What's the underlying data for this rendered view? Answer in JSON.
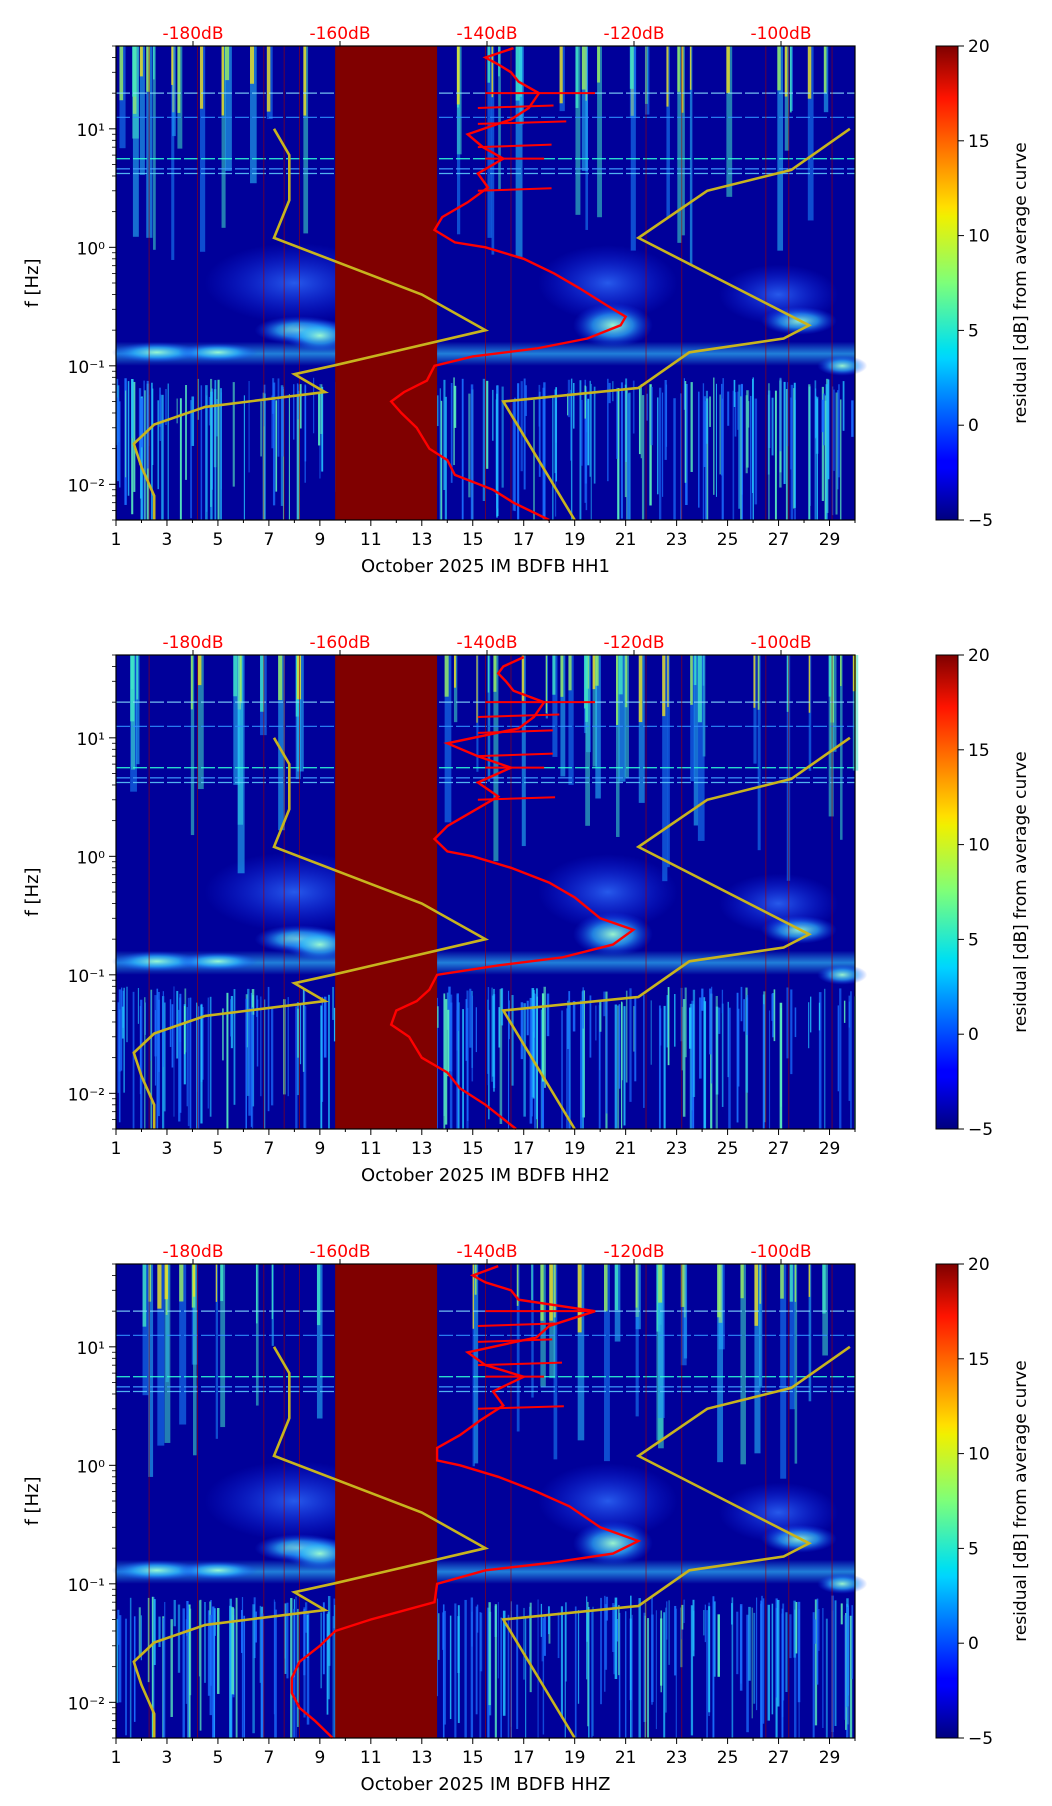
{
  "chart_data": [
    {
      "type": "heatmap",
      "channel": "HH1",
      "xlabel": "October 2025 IM BDFB  HH1",
      "ylabel": "f [Hz]",
      "x_ticks": [
        "1",
        "3",
        "5",
        "7",
        "9",
        "11",
        "13",
        "15",
        "17",
        "19",
        "21",
        "23",
        "25",
        "27",
        "29"
      ],
      "y_ticks": [
        "10⁻²",
        "10⁻¹",
        "10⁰",
        "10¹"
      ],
      "top_ticks": [
        "-180dB",
        "-160dB",
        "-140dB",
        "-120dB",
        "-100dB"
      ],
      "colorbar": {
        "label": "residual [dB] from average curve",
        "ticks": [
          "20",
          "15",
          "10",
          "5",
          "0",
          "−5"
        ],
        "range": [
          -5,
          20
        ]
      },
      "gap_days": [
        9.6,
        13.6
      ],
      "red_curve": [
        [
          18,
          0.005
        ],
        [
          16.6,
          0.007
        ],
        [
          15.8,
          0.009
        ],
        [
          14.3,
          0.012
        ],
        [
          14,
          0.016
        ],
        [
          13.3,
          0.02
        ],
        [
          12.8,
          0.03
        ],
        [
          12.2,
          0.04
        ],
        [
          11.8,
          0.05
        ],
        [
          12.3,
          0.06
        ],
        [
          13.2,
          0.075
        ],
        [
          13.5,
          0.1
        ],
        [
          15,
          0.12
        ],
        [
          17.5,
          0.14
        ],
        [
          19.5,
          0.17
        ],
        [
          20.8,
          0.22
        ],
        [
          21,
          0.26
        ],
        [
          20.3,
          0.32
        ],
        [
          19.2,
          0.45
        ],
        [
          18.2,
          0.6
        ],
        [
          17,
          0.8
        ],
        [
          15.5,
          1.0
        ],
        [
          14.3,
          1.1
        ],
        [
          13.5,
          1.4
        ],
        [
          13.8,
          1.8
        ],
        [
          14.8,
          2.4
        ],
        [
          15.6,
          3.2
        ],
        [
          15.2,
          4.2
        ],
        [
          16.2,
          5.6
        ],
        [
          15.4,
          7
        ],
        [
          14.8,
          9
        ],
        [
          16.5,
          12
        ],
        [
          17.2,
          15
        ],
        [
          17.6,
          20
        ],
        [
          16.8,
          25
        ],
        [
          16.5,
          30
        ],
        [
          16,
          35
        ],
        [
          15.5,
          40
        ],
        [
          16.6,
          48
        ]
      ],
      "yellow_curve": [
        [
          2.5,
          0.005
        ],
        [
          2.5,
          0.008
        ],
        [
          2,
          0.014
        ],
        [
          1.7,
          0.022
        ],
        [
          2.5,
          0.032
        ],
        [
          4.5,
          0.045
        ],
        [
          9.2,
          0.06
        ],
        [
          8,
          0.085
        ],
        [
          9.5,
          0.1
        ],
        [
          15.5,
          0.2
        ],
        [
          13,
          0.4
        ],
        [
          7.2,
          1.2
        ],
        [
          7.8,
          2.5
        ],
        [
          7.8,
          6
        ],
        [
          7.2,
          10
        ]
      ],
      "yellow_curve_2": [
        [
          19,
          0.005
        ],
        [
          16.2,
          0.05
        ],
        [
          21.5,
          0.065
        ],
        [
          23.5,
          0.13
        ],
        [
          27.2,
          0.17
        ],
        [
          28.2,
          0.22
        ],
        [
          21.5,
          1.2
        ],
        [
          24.2,
          3
        ],
        [
          27.5,
          4.5
        ],
        [
          29.8,
          10
        ]
      ]
    },
    {
      "type": "heatmap",
      "channel": "HH2",
      "xlabel": "October 2025 IM BDFB  HH2",
      "ylabel": "f [Hz]",
      "x_ticks": [
        "1",
        "3",
        "5",
        "7",
        "9",
        "11",
        "13",
        "15",
        "17",
        "19",
        "21",
        "23",
        "25",
        "27",
        "29"
      ],
      "y_ticks": [
        "10⁻²",
        "10⁻¹",
        "10⁰",
        "10¹"
      ],
      "top_ticks": [
        "-180dB",
        "-160dB",
        "-140dB",
        "-120dB",
        "-100dB"
      ],
      "colorbar": {
        "label": "residual [dB] from average curve",
        "ticks": [
          "20",
          "15",
          "10",
          "5",
          "0",
          "−5"
        ],
        "range": [
          -5,
          20
        ]
      },
      "gap_days": [
        9.6,
        13.6
      ],
      "red_curve": [
        [
          16.7,
          0.005
        ],
        [
          15.5,
          0.008
        ],
        [
          14.5,
          0.011
        ],
        [
          14,
          0.015
        ],
        [
          13,
          0.02
        ],
        [
          12.5,
          0.03
        ],
        [
          11.8,
          0.038
        ],
        [
          12,
          0.05
        ],
        [
          12.8,
          0.06
        ],
        [
          13.3,
          0.075
        ],
        [
          13.6,
          0.1
        ],
        [
          16,
          0.12
        ],
        [
          18.5,
          0.14
        ],
        [
          20.5,
          0.18
        ],
        [
          21.3,
          0.24
        ],
        [
          20,
          0.3
        ],
        [
          19,
          0.45
        ],
        [
          18,
          0.6
        ],
        [
          16.5,
          0.8
        ],
        [
          15,
          1.0
        ],
        [
          14,
          1.1
        ],
        [
          13.5,
          1.4
        ],
        [
          14,
          1.8
        ],
        [
          15,
          2.4
        ],
        [
          16,
          3.2
        ],
        [
          15.2,
          4.2
        ],
        [
          16.5,
          5.6
        ],
        [
          15.2,
          7
        ],
        [
          14,
          9
        ],
        [
          16.8,
          12
        ],
        [
          17.4,
          15
        ],
        [
          17.8,
          20
        ],
        [
          16.6,
          25
        ],
        [
          16.3,
          30
        ],
        [
          16,
          35
        ],
        [
          16.2,
          40
        ],
        [
          17,
          48
        ]
      ],
      "yellow_curve": [
        [
          2.5,
          0.005
        ],
        [
          2.5,
          0.008
        ],
        [
          2,
          0.014
        ],
        [
          1.7,
          0.022
        ],
        [
          2.5,
          0.032
        ],
        [
          4.5,
          0.045
        ],
        [
          9.2,
          0.06
        ],
        [
          8,
          0.085
        ],
        [
          9.5,
          0.1
        ],
        [
          15.5,
          0.2
        ],
        [
          13,
          0.4
        ],
        [
          7.2,
          1.2
        ],
        [
          7.8,
          2.5
        ],
        [
          7.8,
          6
        ],
        [
          7.2,
          10
        ]
      ],
      "yellow_curve_2": [
        [
          19,
          0.005
        ],
        [
          16.2,
          0.05
        ],
        [
          21.5,
          0.065
        ],
        [
          23.5,
          0.13
        ],
        [
          27.2,
          0.17
        ],
        [
          28.2,
          0.22
        ],
        [
          21.5,
          1.2
        ],
        [
          24.2,
          3
        ],
        [
          27.5,
          4.5
        ],
        [
          29.8,
          10
        ]
      ]
    },
    {
      "type": "heatmap",
      "channel": "HHZ",
      "xlabel": "October 2025 IM BDFB  HHZ",
      "ylabel": "f [Hz]",
      "x_ticks": [
        "1",
        "3",
        "5",
        "7",
        "9",
        "11",
        "13",
        "15",
        "17",
        "19",
        "21",
        "23",
        "25",
        "27",
        "29"
      ],
      "y_ticks": [
        "10⁻²",
        "10⁻¹",
        "10⁰",
        "10¹"
      ],
      "top_ticks": [
        "-180dB",
        "-160dB",
        "-140dB",
        "-120dB",
        "-100dB"
      ],
      "colorbar": {
        "label": "residual [dB] from average curve",
        "ticks": [
          "20",
          "15",
          "10",
          "5",
          "0",
          "−5"
        ],
        "range": [
          -5,
          20
        ]
      },
      "gap_days": [
        9.6,
        13.6
      ],
      "red_curve": [
        [
          9.5,
          0.005
        ],
        [
          8.8,
          0.007
        ],
        [
          8.2,
          0.009
        ],
        [
          7.9,
          0.012
        ],
        [
          7.9,
          0.016
        ],
        [
          8.2,
          0.022
        ],
        [
          9,
          0.03
        ],
        [
          9.6,
          0.04
        ],
        [
          11,
          0.05
        ],
        [
          13.5,
          0.07
        ],
        [
          13.6,
          0.1
        ],
        [
          15.5,
          0.13
        ],
        [
          18,
          0.15
        ],
        [
          20.5,
          0.18
        ],
        [
          21.5,
          0.23
        ],
        [
          20,
          0.3
        ],
        [
          18.8,
          0.45
        ],
        [
          17.5,
          0.6
        ],
        [
          16,
          0.8
        ],
        [
          14.5,
          1.0
        ],
        [
          13.6,
          1.1
        ],
        [
          13.6,
          1.4
        ],
        [
          14.5,
          1.8
        ],
        [
          15.3,
          2.4
        ],
        [
          16.2,
          3.2
        ],
        [
          15.8,
          4.2
        ],
        [
          17,
          5.6
        ],
        [
          15.5,
          7
        ],
        [
          14.8,
          9
        ],
        [
          17.5,
          12
        ],
        [
          18,
          15
        ],
        [
          19.8,
          20
        ],
        [
          16.8,
          25
        ],
        [
          16.5,
          30
        ],
        [
          15.5,
          35
        ],
        [
          15,
          40
        ],
        [
          16,
          48
        ]
      ],
      "yellow_curve": [
        [
          2.5,
          0.005
        ],
        [
          2.5,
          0.008
        ],
        [
          2,
          0.014
        ],
        [
          1.7,
          0.022
        ],
        [
          2.5,
          0.032
        ],
        [
          4.5,
          0.045
        ],
        [
          9.2,
          0.06
        ],
        [
          8,
          0.085
        ],
        [
          9.5,
          0.1
        ],
        [
          15.5,
          0.2
        ],
        [
          13,
          0.4
        ],
        [
          7.2,
          1.2
        ],
        [
          7.8,
          2.5
        ],
        [
          7.8,
          6
        ],
        [
          7.2,
          10
        ]
      ],
      "yellow_curve_2": [
        [
          19,
          0.005
        ],
        [
          16.2,
          0.05
        ],
        [
          21.5,
          0.065
        ],
        [
          23.5,
          0.13
        ],
        [
          27.2,
          0.17
        ],
        [
          28.2,
          0.22
        ],
        [
          21.5,
          1.2
        ],
        [
          24.2,
          3
        ],
        [
          27.5,
          4.5
        ],
        [
          29.8,
          10
        ]
      ]
    }
  ],
  "colors": {
    "gap": "#800000",
    "red_curve": "#ff0000",
    "yellow_curve": "#c8b41e",
    "top_tick_text": "#ff0000",
    "background": "#00009a"
  }
}
